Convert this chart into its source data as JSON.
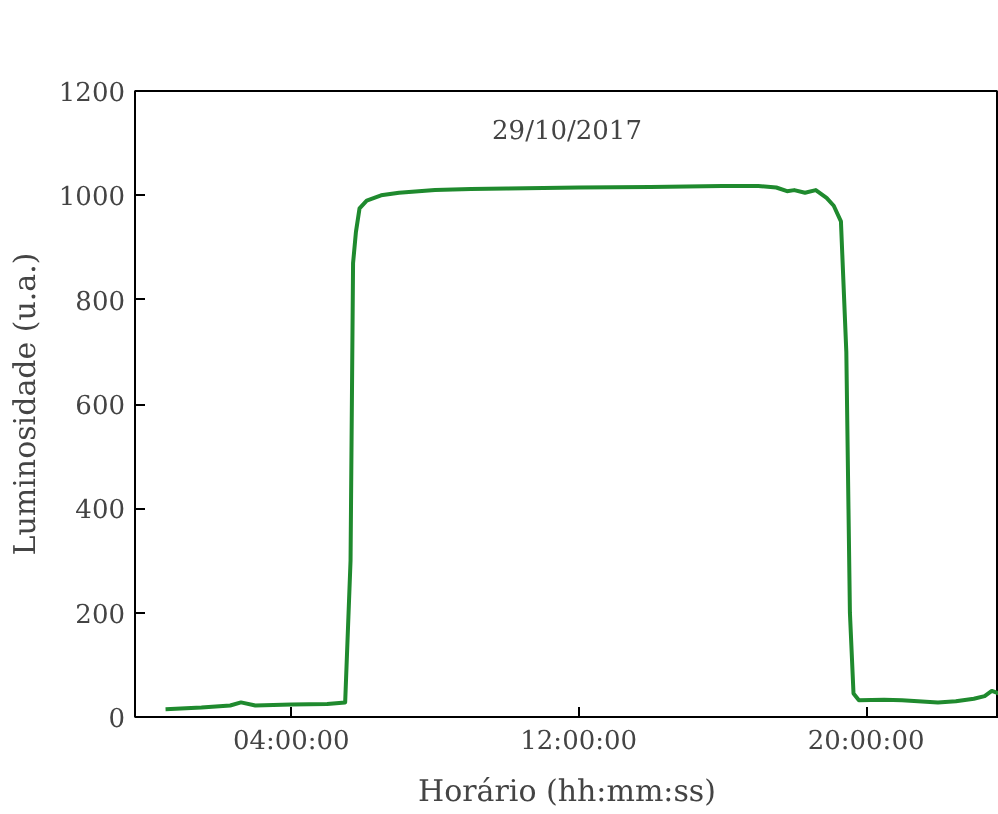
{
  "chart_data": {
    "type": "line",
    "title": "29/10/2017",
    "xlabel": "Horário (hh:mm:ss)",
    "ylabel": "Luminosidade (u.a.)",
    "x": [
      0.5,
      1.5,
      2.3,
      2.6,
      3.0,
      4.0,
      5.0,
      5.5,
      5.65,
      5.72,
      5.8,
      5.9,
      6.1,
      6.5,
      7.0,
      8.0,
      9.0,
      10.0,
      12.0,
      14.0,
      16.0,
      17.0,
      17.5,
      17.8,
      18.0,
      18.3,
      18.6,
      18.9,
      19.1,
      19.3,
      19.45,
      19.55,
      19.65,
      19.8,
      20.5,
      21.0,
      22.0,
      22.5,
      23.0,
      23.3,
      23.5,
      23.7
    ],
    "series": [
      {
        "color": "#1f8a2e",
        "values": [
          15,
          18,
          22,
          28,
          22,
          24,
          25,
          28,
          300,
          870,
          930,
          975,
          990,
          1000,
          1005,
          1010,
          1012,
          1013,
          1015,
          1016,
          1018,
          1018,
          1015,
          1008,
          1010,
          1005,
          1010,
          995,
          980,
          950,
          700,
          200,
          45,
          32,
          33,
          32,
          28,
          30,
          35,
          40,
          50,
          45
        ]
      }
    ],
    "xlim": [
      -0.35,
      23.7
    ],
    "ylim": [
      0,
      1200
    ],
    "xticks": [
      {
        "value": 4,
        "label": "04:00:00"
      },
      {
        "value": 12,
        "label": "12:00:00"
      },
      {
        "value": 20,
        "label": "20:00:00"
      }
    ],
    "yticks": [
      0,
      200,
      400,
      600,
      800,
      1000,
      1200
    ],
    "grid": false,
    "marker": "none",
    "line_style": "solid"
  }
}
